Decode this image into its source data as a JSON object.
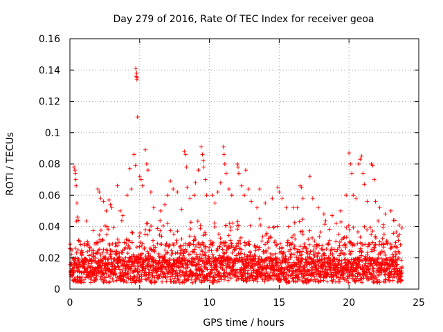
{
  "chart_data": {
    "type": "scatter",
    "title": "Day 279 of 2016, Rate Of TEC Index for receiver geoa",
    "xlabel": "GPS time / hours",
    "ylabel": "ROTI / TECUs",
    "xlim": [
      0,
      25
    ],
    "ylim": [
      0,
      0.16
    ],
    "x_ticks": [
      "0",
      "5",
      "10",
      "15",
      "20",
      "25"
    ],
    "x_tick_values": [
      0,
      5,
      10,
      15,
      20,
      25
    ],
    "y_ticks": [
      "0",
      "0.02",
      "0.04",
      "0.06",
      "0.08",
      "0.1",
      "0.12",
      "0.14",
      "0.16"
    ],
    "y_tick_values": [
      0,
      0.02,
      0.04,
      0.06,
      0.08,
      0.1,
      0.12,
      0.14,
      0.16
    ],
    "grid": true,
    "marker": "+",
    "color": "#ff0000",
    "series": [
      {
        "name": "ROTI",
        "points": [
          [
            4.72,
            0.141
          ],
          [
            4.78,
            0.138
          ],
          [
            4.75,
            0.136
          ],
          [
            4.82,
            0.135
          ],
          [
            4.8,
            0.134
          ],
          [
            4.85,
            0.11
          ],
          [
            0.3,
            0.078
          ],
          [
            0.35,
            0.076
          ],
          [
            0.4,
            0.074
          ],
          [
            0.42,
            0.07
          ],
          [
            0.45,
            0.066
          ],
          [
            0.5,
            0.055
          ],
          [
            0.55,
            0.046
          ],
          [
            0.6,
            0.044
          ],
          [
            2.0,
            0.064
          ],
          [
            2.1,
            0.062
          ],
          [
            2.2,
            0.058
          ],
          [
            2.4,
            0.056
          ],
          [
            2.6,
            0.05
          ],
          [
            2.8,
            0.057
          ],
          [
            2.9,
            0.054
          ],
          [
            3.0,
            0.052
          ],
          [
            3.4,
            0.066
          ],
          [
            3.6,
            0.05
          ],
          [
            3.8,
            0.047
          ],
          [
            4.1,
            0.06
          ],
          [
            4.3,
            0.077
          ],
          [
            4.4,
            0.064
          ],
          [
            4.6,
            0.086
          ],
          [
            4.7,
            0.079
          ],
          [
            5.0,
            0.072
          ],
          [
            5.1,
            0.07
          ],
          [
            5.2,
            0.066
          ],
          [
            5.4,
            0.089
          ],
          [
            5.5,
            0.08
          ],
          [
            5.6,
            0.076
          ],
          [
            5.8,
            0.062
          ],
          [
            6.0,
            0.052
          ],
          [
            6.5,
            0.05
          ],
          [
            6.8,
            0.054
          ],
          [
            7.0,
            0.06
          ],
          [
            7.2,
            0.069
          ],
          [
            7.4,
            0.064
          ],
          [
            7.7,
            0.062
          ],
          [
            8.0,
            0.051
          ],
          [
            8.2,
            0.088
          ],
          [
            8.3,
            0.086
          ],
          [
            8.35,
            0.078
          ],
          [
            8.4,
            0.065
          ],
          [
            8.6,
            0.058
          ],
          [
            8.9,
            0.06
          ],
          [
            9.0,
            0.068
          ],
          [
            9.2,
            0.076
          ],
          [
            9.4,
            0.091
          ],
          [
            9.5,
            0.086
          ],
          [
            9.55,
            0.082
          ],
          [
            9.6,
            0.078
          ],
          [
            9.7,
            0.07
          ],
          [
            9.8,
            0.06
          ],
          [
            10.2,
            0.06
          ],
          [
            10.4,
            0.055
          ],
          [
            10.6,
            0.062
          ],
          [
            10.8,
            0.068
          ],
          [
            11.0,
            0.091
          ],
          [
            11.05,
            0.086
          ],
          [
            11.1,
            0.08
          ],
          [
            11.2,
            0.074
          ],
          [
            11.4,
            0.064
          ],
          [
            11.6,
            0.06
          ],
          [
            12.0,
            0.08
          ],
          [
            12.05,
            0.078
          ],
          [
            12.1,
            0.074
          ],
          [
            12.3,
            0.066
          ],
          [
            12.5,
            0.06
          ],
          [
            12.6,
            0.076
          ],
          [
            12.8,
            0.064
          ],
          [
            13.0,
            0.056
          ],
          [
            13.4,
            0.052
          ],
          [
            13.6,
            0.064
          ],
          [
            14.0,
            0.055
          ],
          [
            14.5,
            0.058
          ],
          [
            14.9,
            0.065
          ],
          [
            15.0,
            0.062
          ],
          [
            15.2,
            0.058
          ],
          [
            15.5,
            0.052
          ],
          [
            16.0,
            0.052
          ],
          [
            16.3,
            0.052
          ],
          [
            16.5,
            0.066
          ],
          [
            16.6,
            0.065
          ],
          [
            16.7,
            0.058
          ],
          [
            17.2,
            0.072
          ],
          [
            17.4,
            0.058
          ],
          [
            17.8,
            0.052
          ],
          [
            18.2,
            0.048
          ],
          [
            18.8,
            0.047
          ],
          [
            19.4,
            0.05
          ],
          [
            19.8,
            0.06
          ],
          [
            20.0,
            0.087
          ],
          [
            20.1,
            0.08
          ],
          [
            20.2,
            0.074
          ],
          [
            20.3,
            0.06
          ],
          [
            20.5,
            0.058
          ],
          [
            20.7,
            0.08
          ],
          [
            20.8,
            0.083
          ],
          [
            20.9,
            0.085
          ],
          [
            21.0,
            0.074
          ],
          [
            21.1,
            0.067
          ],
          [
            21.3,
            0.056
          ],
          [
            21.6,
            0.08
          ],
          [
            21.7,
            0.079
          ],
          [
            21.8,
            0.07
          ],
          [
            21.9,
            0.056
          ],
          [
            22.2,
            0.052
          ],
          [
            22.6,
            0.048
          ],
          [
            23.0,
            0.05
          ],
          [
            23.3,
            0.044
          ],
          [
            23.6,
            0.041
          ],
          [
            23.8,
            0.039
          ]
        ]
      }
    ]
  }
}
